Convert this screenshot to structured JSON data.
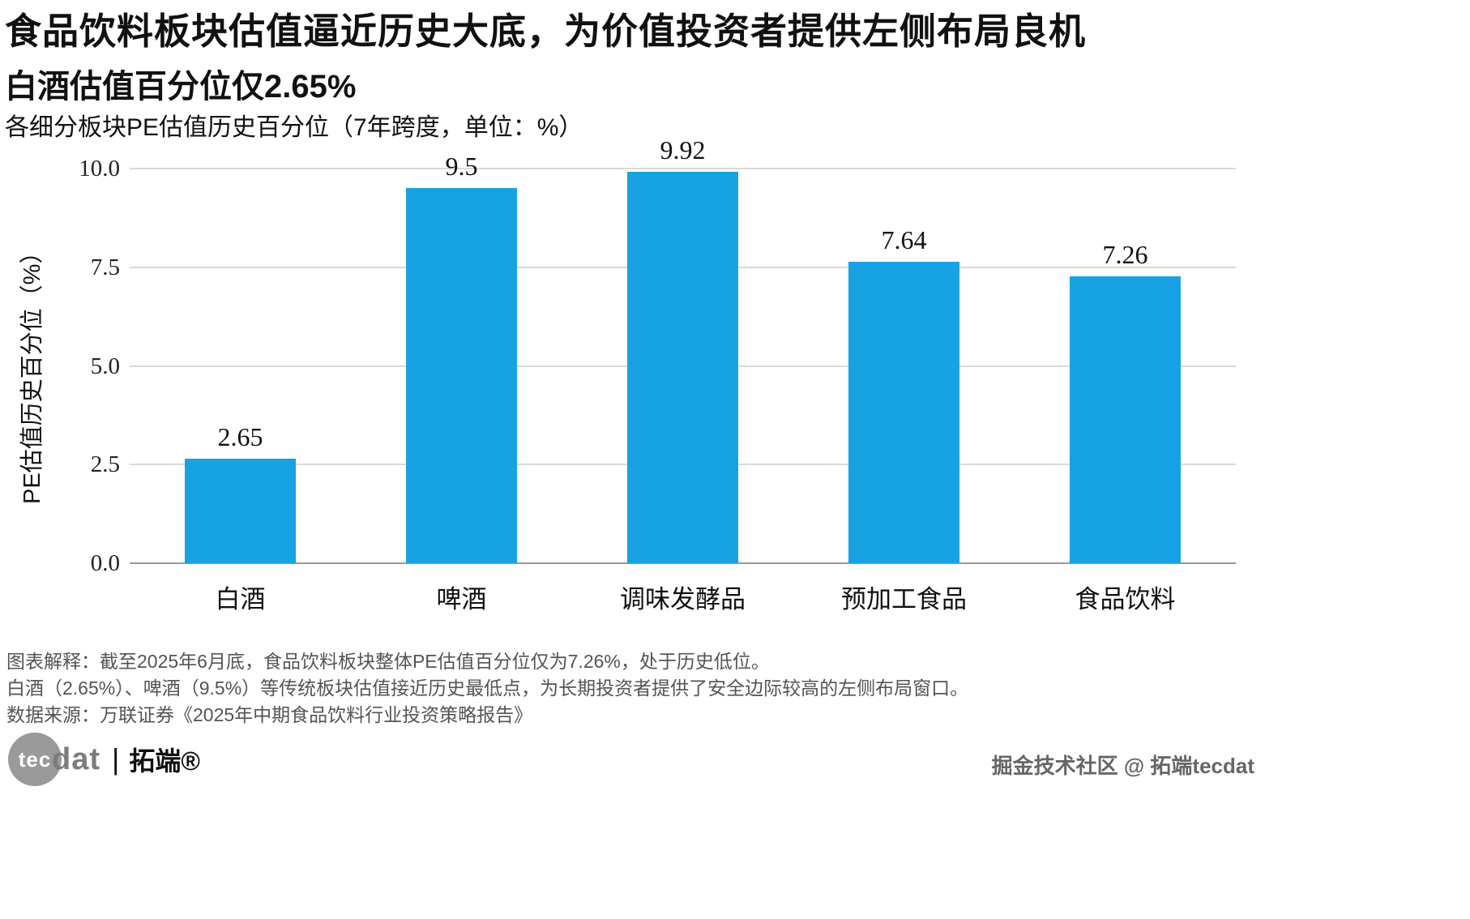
{
  "header": {
    "title_line1": "食品饮料板块估值逼近历史大底，为价值投资者提供左侧布局良机",
    "title_line2": "白酒估值百分位仅2.65%",
    "subtitle": "各细分板块PE估值历史百分位（7年跨度，单位：%）"
  },
  "chart_data": {
    "type": "bar",
    "title": "各细分板块PE估值历史百分位（7年跨度，单位：%）",
    "categories": [
      "白酒",
      "啤酒",
      "调味发酵品",
      "预加工食品",
      "食品饮料"
    ],
    "values": [
      2.65,
      9.5,
      9.92,
      7.64,
      7.26
    ],
    "value_labels": [
      "2.65",
      "9.5",
      "9.92",
      "7.64",
      "7.26"
    ],
    "xlabel": "",
    "ylabel": "PE估值历史百分位（%）",
    "ylim": [
      0,
      10
    ],
    "yticks": [
      0,
      2.5,
      5,
      7.5,
      10
    ],
    "ytick_labels": [
      "0.0",
      "2.5",
      "5.0",
      "7.5",
      "10.0"
    ],
    "grid": true,
    "legend": "none",
    "bar_color": "#17a3e3"
  },
  "footnotes": {
    "line1": "图表解释：截至2025年6月底，食品饮料板块整体PE估值百分位仅为7.26%，处于历史低位。",
    "line2": "白酒（2.65%）、啤酒（9.5%）等传统板块估值接近历史最低点，为长期投资者提供了安全边际较高的左侧布局窗口。",
    "line3": "数据来源：万联证券《2025年中期食品饮料行业投资策略报告》"
  },
  "branding": {
    "logo_circle_text": "tec",
    "logo_rest_text": "dat",
    "logo_separator": "|",
    "logo_brand": "拓端®",
    "watermark": "掘金技术社区 @ 拓端tecdat"
  }
}
